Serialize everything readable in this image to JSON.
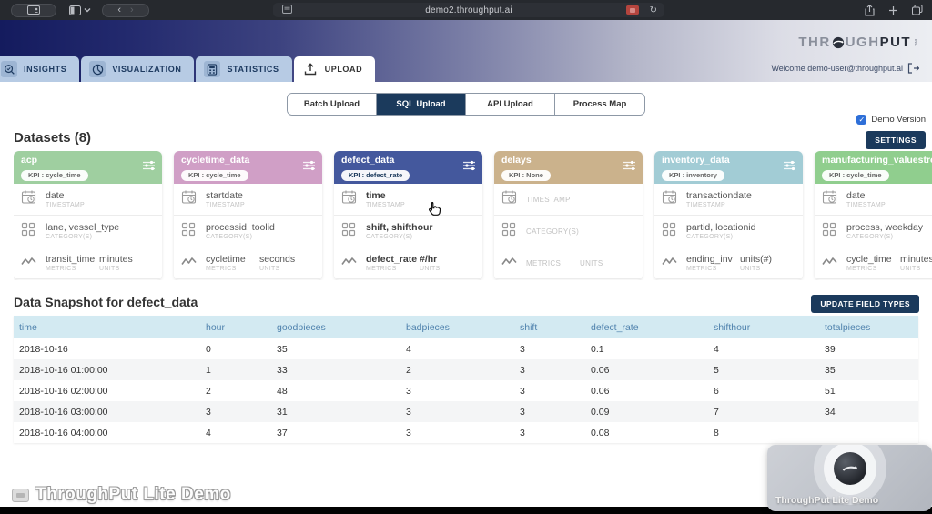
{
  "browser": {
    "url": "demo2.throughput.ai"
  },
  "header": {
    "logo": {
      "pre": "THR",
      "mid": "UGH",
      "bold": "PUT",
      "inc": "INC"
    },
    "welcome": "Welcome demo-user@throughput.ai"
  },
  "nav": {
    "tabs": [
      {
        "label": "INSIGHTS",
        "icon": "insights",
        "active": false
      },
      {
        "label": "VISUALIZATION",
        "icon": "visualization",
        "active": false
      },
      {
        "label": "STATISTICS",
        "icon": "statistics",
        "active": false
      },
      {
        "label": "UPLOAD",
        "icon": "upload",
        "active": true
      }
    ]
  },
  "subnav": {
    "tabs": [
      "Batch Upload",
      "SQL Upload",
      "API Upload",
      "Process Map"
    ],
    "active": "SQL Upload"
  },
  "demo_version": {
    "label": "Demo Version",
    "checked": true
  },
  "settings_label": "SETTINGS",
  "datasets": {
    "heading": "Datasets (8)",
    "cards": [
      {
        "name": "acp",
        "kpi": "KPI : cycle_time",
        "color": "#9fcfa0",
        "selected": false,
        "rows": [
          {
            "icon": "calendar",
            "value": "date",
            "type": "TIMESTAMP"
          },
          {
            "icon": "grid",
            "value": "lane, vessel_type",
            "type": "CATEGORY(S)"
          },
          {
            "icon": "metrics",
            "value": "transit_time",
            "type": "METRICS",
            "unit": "minutes",
            "unit_type": "UNITS"
          }
        ]
      },
      {
        "name": "cycletime_data",
        "kpi": "KPI : cycle_time",
        "color": "#d09fc6",
        "selected": false,
        "rows": [
          {
            "icon": "calendar",
            "value": "startdate",
            "type": "TIMESTAMP"
          },
          {
            "icon": "grid",
            "value": "processid, toolid",
            "type": "CATEGORY(S)"
          },
          {
            "icon": "metrics",
            "value": "cycletime",
            "type": "METRICS",
            "unit": "seconds",
            "unit_type": "UNITS"
          }
        ]
      },
      {
        "name": "defect_data",
        "kpi": "KPI : defect_rate",
        "color": "#44589d",
        "selected": true,
        "rows": [
          {
            "icon": "calendar",
            "value": "time",
            "type": "TIMESTAMP"
          },
          {
            "icon": "grid",
            "value": "shift, shifthour",
            "type": "CATEGORY(S)"
          },
          {
            "icon": "metrics",
            "value": "defect_rate",
            "type": "METRICS",
            "unit": "#/hr",
            "unit_type": "UNITS"
          }
        ]
      },
      {
        "name": "delays",
        "kpi": "KPI : None",
        "color": "#cbb28c",
        "selected": false,
        "rows": [
          {
            "icon": "calendar",
            "value": "",
            "type": "TIMESTAMP"
          },
          {
            "icon": "grid",
            "value": "",
            "type": "CATEGORY(S)"
          },
          {
            "icon": "metrics",
            "value": "",
            "type": "METRICS",
            "unit": "",
            "unit_type": "UNITS"
          }
        ]
      },
      {
        "name": "inventory_data",
        "kpi": "KPI : inventory",
        "color": "#a2ccd5",
        "selected": false,
        "rows": [
          {
            "icon": "calendar",
            "value": "transactiondate",
            "type": "TIMESTAMP"
          },
          {
            "icon": "grid",
            "value": "partid, locationid",
            "type": "CATEGORY(S)"
          },
          {
            "icon": "metrics",
            "value": "ending_inv",
            "type": "METRICS",
            "unit": "units(#)",
            "unit_type": "UNITS"
          }
        ]
      },
      {
        "name": "manufacturing_valuestream",
        "kpi": "KPI : cycle_time",
        "color": "#90ce8e",
        "selected": false,
        "rows": [
          {
            "icon": "calendar",
            "value": "date",
            "type": "TIMESTAMP"
          },
          {
            "icon": "grid",
            "value": "process, weekday",
            "type": "CATEGORY(S)"
          },
          {
            "icon": "metrics",
            "value": "cycle_time",
            "type": "METRICS",
            "unit": "minutes",
            "unit_type": "UNITS"
          }
        ]
      }
    ]
  },
  "snapshot": {
    "heading": "Data Snapshot for defect_data",
    "update_button": "UPDATE FIELD TYPES",
    "columns": [
      "time",
      "hour",
      "goodpieces",
      "badpieces",
      "shift",
      "defect_rate",
      "shifthour",
      "totalpieces"
    ],
    "rows": [
      [
        "2018-10-16",
        "0",
        "35",
        "4",
        "3",
        "0.1",
        "4",
        "39"
      ],
      [
        "2018-10-16 01:00:00",
        "1",
        "33",
        "2",
        "3",
        "0.06",
        "5",
        "35"
      ],
      [
        "2018-10-16 02:00:00",
        "2",
        "48",
        "3",
        "3",
        "0.06",
        "6",
        "51"
      ],
      [
        "2018-10-16 03:00:00",
        "3",
        "31",
        "3",
        "3",
        "0.09",
        "7",
        "34"
      ],
      [
        "2018-10-16 04:00:00",
        "4",
        "37",
        "3",
        "3",
        "0.08",
        "8",
        ""
      ]
    ]
  },
  "watermark": "ThroughPut Lite Demo",
  "pip": {
    "caption": "ThroughPut Lite Demo"
  },
  "colors": {
    "accent_navy": "#1b3a5c",
    "table_header": "#d3eaf2",
    "demo_check": "#2e6fd8"
  }
}
